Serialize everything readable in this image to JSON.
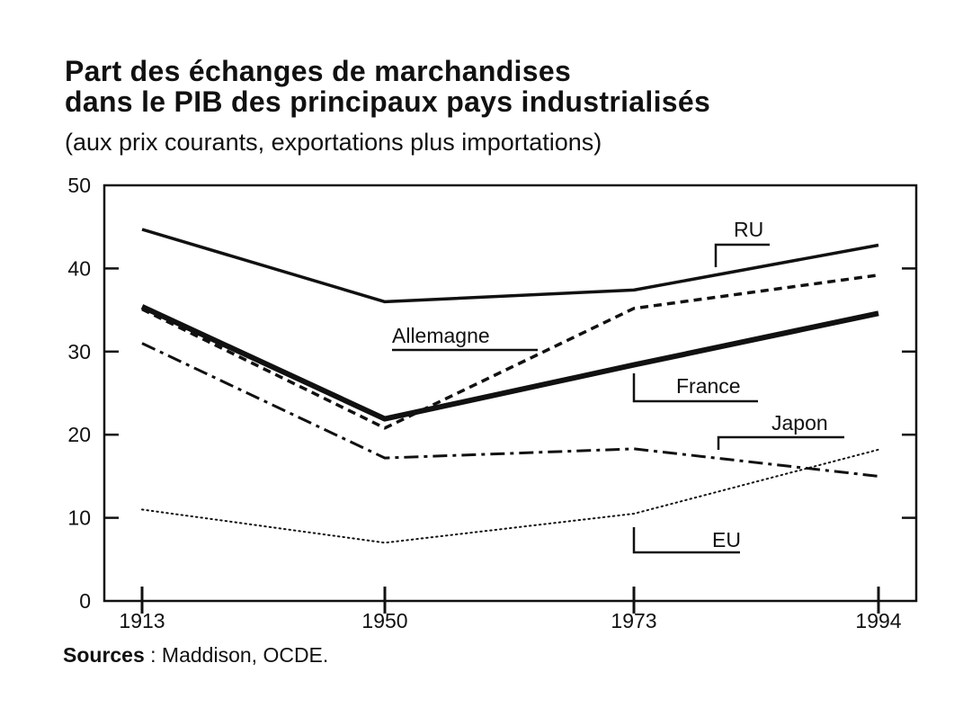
{
  "title_line1": "Part des échanges de marchandises",
  "title_line2": "dans le PIB des principaux pays industrialisés",
  "subtitle": "(aux prix courants, exportations plus importations)",
  "source_label": "Sources",
  "source_text": " : Maddison, OCDE.",
  "chart_data": {
    "type": "line",
    "x": [
      1913,
      1950,
      1973,
      1994
    ],
    "categories": [
      "1913",
      "1950",
      "1973",
      "1994"
    ],
    "ylim": [
      0,
      50
    ],
    "yticks": [
      0,
      10,
      20,
      30,
      40,
      50
    ],
    "grid": false,
    "series": [
      {
        "name": "RU",
        "values": [
          44.7,
          36.0,
          37.4,
          42.8
        ],
        "style": "solid",
        "width": 3.5
      },
      {
        "name": "Allemagne",
        "values": [
          35.1,
          20.8,
          35.2,
          39.2
        ],
        "style": "dashed",
        "width": 3.5
      },
      {
        "name": "France",
        "values": [
          35.4,
          21.9,
          28.4,
          34.6
        ],
        "style": "solid",
        "width": 6
      },
      {
        "name": "Japon",
        "values": [
          31.0,
          17.2,
          18.3,
          15.0
        ],
        "style": "dashdot",
        "width": 3
      },
      {
        "name": "EU",
        "values": [
          11.0,
          7.0,
          10.5,
          18.2
        ],
        "style": "dotted",
        "width": 2
      }
    ],
    "colors": {
      "line": "#111111",
      "background": "#ffffff"
    }
  }
}
